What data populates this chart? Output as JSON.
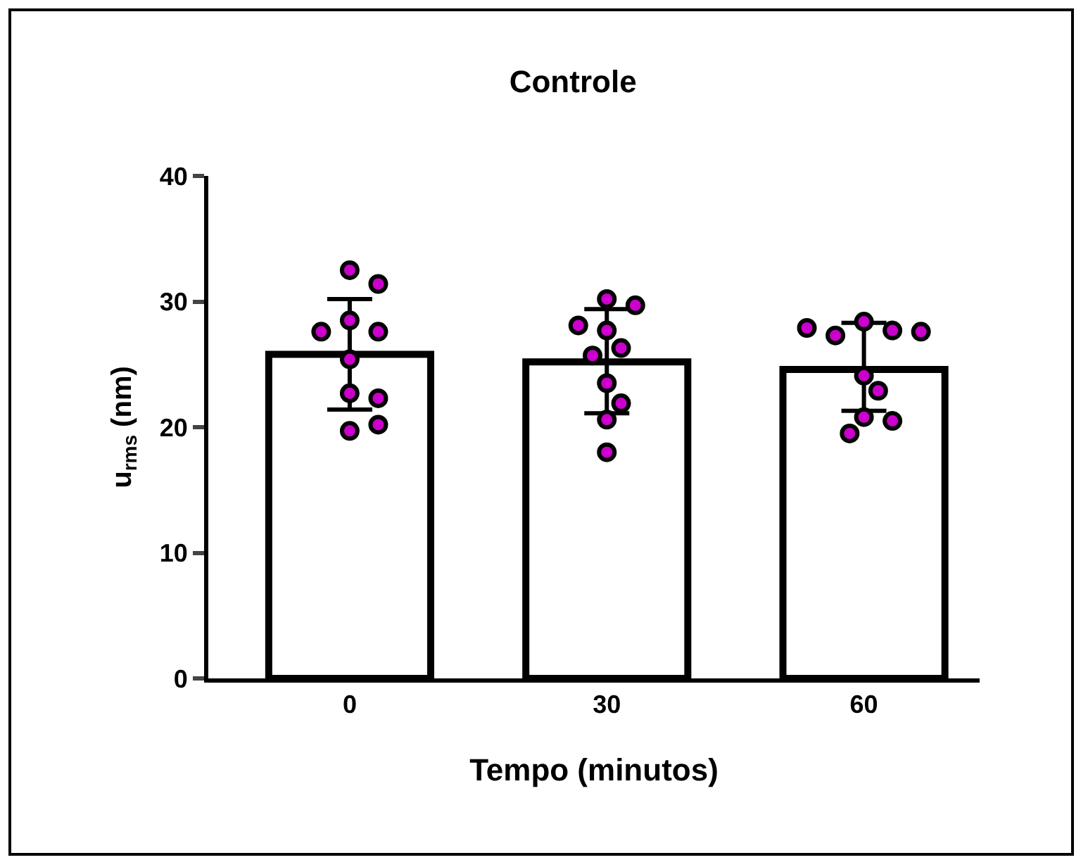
{
  "chart_data": {
    "type": "bar",
    "title": "Controle",
    "xlabel": "Tempo (minutos)",
    "ylabel": "u$_{rms}$ (nm)",
    "categories": [
      "0",
      "30",
      "60"
    ],
    "series": [
      {
        "color": "#ffffff",
        "values": [
          25.8,
          25.2,
          24.6
        ],
        "errors": [
          [
            21.4,
            30.2
          ],
          [
            21.1,
            29.4
          ],
          [
            21.3,
            28.3
          ]
        ]
      },
      {
        "type": "scatter",
        "color": "#cc00cc",
        "x": [
          "0",
          "0",
          "0",
          "0",
          "0",
          "0",
          "0",
          "0",
          "0",
          "0",
          "30",
          "30",
          "30",
          "30",
          "30",
          "30",
          "30",
          "30",
          "30",
          "30",
          "60",
          "60",
          "60",
          "60",
          "60",
          "60",
          "60",
          "60",
          "60",
          "60"
        ],
        "values": [
          32.5,
          31.4,
          28.5,
          27.6,
          27.6,
          25.4,
          22.7,
          22.3,
          19.7,
          20.2,
          30.2,
          29.7,
          27.7,
          28.1,
          26.3,
          25.7,
          23.5,
          21.9,
          20.6,
          18.0,
          28.4,
          27.7,
          27.3,
          27.6,
          27.9,
          24.1,
          22.9,
          20.8,
          20.5,
          19.5
        ]
      }
    ],
    "ylim": [
      0,
      40
    ],
    "yticks": [
      0,
      10,
      20,
      30,
      40
    ],
    "grid": false,
    "marker": "circle"
  }
}
